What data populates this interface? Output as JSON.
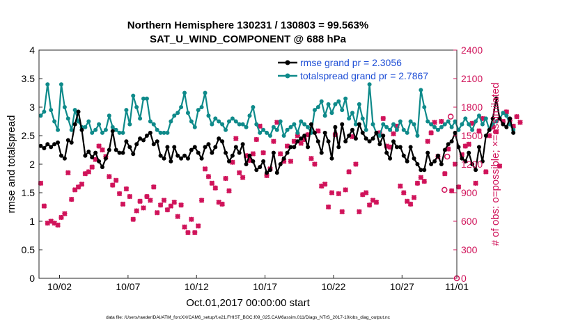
{
  "chart_data": {
    "type": "line",
    "title_line1": "Northern Hemisphere 130231 / 130803 = 99.563%",
    "title_line2": "SAT_U_WIND_COMPONENT @ 688 hPa",
    "xlabel": "Oct.01,2017 00:00:00 start",
    "ylabel_left": "rmse and totalspread",
    "ylabel_right": "# of obs: o=possible; ×=assimilated",
    "footer": "data file: /Users/raeder/DAI/ATM_forcXX/CAM6_setup/f.e21.FHIST_BGC.f09_025.CAM6assim.011/Diags_NTrS_2017-10/obs_diag_output.nc",
    "xlim": [
      0.5,
      31.0
    ],
    "ylim_left": [
      0,
      4
    ],
    "ylim_right": [
      0,
      2400
    ],
    "x_ticks": [
      {
        "value": 2,
        "label": "10/02"
      },
      {
        "value": 7,
        "label": "10/07"
      },
      {
        "value": 12,
        "label": "10/12"
      },
      {
        "value": 17,
        "label": "10/17"
      },
      {
        "value": 22,
        "label": "10/22"
      },
      {
        "value": 27,
        "label": "10/27"
      },
      {
        "value": 31,
        "label": "11/01"
      }
    ],
    "y_ticks_left": [
      {
        "value": 0,
        "label": "0"
      },
      {
        "value": 0.5,
        "label": "0.5"
      },
      {
        "value": 1,
        "label": "1"
      },
      {
        "value": 1.5,
        "label": "1.5"
      },
      {
        "value": 2,
        "label": "2"
      },
      {
        "value": 2.5,
        "label": "2.5"
      },
      {
        "value": 3,
        "label": "3"
      },
      {
        "value": 3.5,
        "label": "3.5"
      },
      {
        "value": 4,
        "label": "4"
      }
    ],
    "y_ticks_right": [
      {
        "value": 0,
        "label": "0"
      },
      {
        "value": 300,
        "label": "300"
      },
      {
        "value": 600,
        "label": "600"
      },
      {
        "value": 900,
        "label": "900"
      },
      {
        "value": 1200,
        "label": "1200"
      },
      {
        "value": 1500,
        "label": "1500"
      },
      {
        "value": 1800,
        "label": "1800"
      },
      {
        "value": 2100,
        "label": "2100"
      },
      {
        "value": 2400,
        "label": "2400"
      }
    ],
    "legend": [
      {
        "name": "rmse grand pr = 2.3056",
        "color": "#000000"
      },
      {
        "name": "totalspread grand pr = 2.7867",
        "color": "#0e8a8a"
      }
    ],
    "legend_position": "top-right",
    "colors": {
      "rmse": "#000000",
      "spread": "#0e8a8a",
      "obs": "#d0135a",
      "legend_text": "#1f4fd6"
    },
    "x_start": 0.625,
    "x_step": 0.25,
    "series": [
      {
        "name": "rmse",
        "axis": "left",
        "values": [
          2.32,
          2.28,
          2.35,
          2.3,
          2.35,
          2.38,
          2.15,
          2.1,
          2.42,
          2.38,
          2.7,
          2.92,
          2.6,
          2.15,
          2.22,
          2.12,
          2.2,
          2.05,
          1.95,
          2.1,
          2.25,
          2.58,
          2.25,
          2.2,
          2.2,
          2.4,
          2.3,
          2.18,
          2.35,
          2.45,
          2.42,
          2.5,
          2.55,
          2.35,
          2.4,
          2.15,
          2.1,
          2.3,
          2.05,
          2.3,
          2.15,
          2.1,
          2.15,
          2.1,
          2.25,
          2.3,
          2.2,
          2.1,
          2.3,
          2.35,
          2.2,
          2.3,
          2.45,
          2.4,
          2.2,
          2.05,
          2.15,
          2.3,
          2.2,
          2.35,
          2.0,
          2.15,
          2.05,
          1.9,
          1.95,
          2.05,
          1.85,
          1.9,
          2.2,
          1.85,
          2.0,
          2.1,
          2.2,
          2.3,
          2.3,
          2.4,
          2.45,
          2.5,
          2.3,
          2.7,
          2.55,
          2.4,
          2.2,
          2.55,
          2.4,
          2.1,
          2.65,
          2.3,
          2.7,
          2.4,
          2.5,
          2.6,
          2.45,
          2.7,
          2.55,
          2.45,
          2.4,
          2.45,
          2.55,
          2.35,
          2.5,
          2.2,
          2.1,
          2.4,
          2.3,
          2.3,
          2.15,
          2.05,
          2.3,
          2.1,
          2.0,
          1.9,
          1.9,
          2.2,
          2.0,
          2.05,
          2.15,
          2.0,
          2.25,
          2.35,
          2.4,
          2.55,
          2.3,
          2.1,
          2.05,
          2.2,
          2.0,
          1.9,
          2.3,
          2.05,
          2.5,
          2.6,
          2.8,
          3.15,
          2.8,
          2.7,
          2.65,
          2.8,
          2.55
        ],
        "color": "#000000"
      },
      {
        "name": "totalspread",
        "axis": "left",
        "values": [
          2.85,
          2.92,
          3.4,
          2.95,
          2.75,
          2.6,
          3.4,
          3.0,
          2.8,
          2.6,
          2.95,
          2.75,
          2.65,
          2.65,
          2.75,
          2.55,
          2.6,
          2.7,
          2.55,
          2.6,
          2.85,
          2.65,
          2.6,
          2.55,
          2.55,
          2.95,
          2.7,
          3.2,
          3.0,
          2.8,
          3.15,
          3.15,
          2.75,
          2.7,
          2.6,
          2.55,
          2.55,
          2.55,
          2.75,
          2.85,
          2.9,
          3.0,
          3.25,
          2.9,
          2.75,
          2.65,
          2.95,
          3.0,
          3.25,
          2.85,
          2.7,
          2.8,
          2.75,
          2.7,
          2.6,
          2.75,
          2.8,
          2.75,
          2.7,
          2.7,
          2.65,
          2.85,
          3.0,
          2.7,
          2.55,
          2.6,
          2.55,
          2.5,
          2.65,
          2.6,
          2.75,
          2.5,
          2.6,
          2.65,
          2.7,
          2.55,
          2.75,
          2.7,
          2.65,
          2.55,
          2.95,
          3.0,
          3.1,
          2.85,
          3.05,
          2.9,
          3.05,
          3.1,
          2.95,
          3.15,
          2.8,
          2.9,
          2.7,
          3.05,
          2.8,
          2.6,
          3.4,
          2.7,
          2.55,
          2.5,
          2.7,
          2.65,
          2.6,
          2.7,
          2.6,
          2.75,
          2.6,
          2.55,
          2.75,
          2.7,
          2.5,
          3.3,
          3.0,
          2.75,
          2.7,
          2.65,
          2.6,
          2.65,
          2.7,
          2.75,
          2.65,
          2.75,
          2.6,
          2.7,
          2.8,
          2.7,
          2.6,
          2.75,
          2.85,
          2.7,
          2.8,
          2.6,
          2.7,
          2.75,
          2.8,
          2.9,
          2.85,
          2.7,
          2.6
        ],
        "color": "#0e8a8a"
      },
      {
        "name": "assimilated obs",
        "axis": "right",
        "values": [
          1000,
          760,
          580,
          600,
          580,
          560,
          640,
          680,
          1110,
          830,
          930,
          960,
          990,
          1100,
          1120,
          1170,
          1250,
          1390,
          1350,
          1280,
          1070,
          980,
          1030,
          890,
          780,
          940,
          860,
          620,
          710,
          810,
          740,
          860,
          820,
          960,
          690,
          770,
          820,
          720,
          760,
          800,
          650,
          770,
          540,
          480,
          620,
          480,
          550,
          820,
          1150,
          1070,
          1000,
          950,
          800,
          780,
          1050,
          920,
          1220,
          1470,
          1110,
          1060,
          1290,
          1240,
          1310,
          1460,
          1600,
          1320,
          1080,
          1150,
          1440,
          1640,
          1310,
          1230,
          1390,
          1230,
          1440,
          1500,
          1420,
          1460,
          1510,
          1260,
          1200,
          1550,
          970,
          990,
          750,
          900,
          1510,
          890,
          700,
          930,
          1120,
          1490,
          1200,
          700,
          880,
          900,
          770,
          820,
          800,
          1530,
          1680,
          1390,
          1380,
          1520,
          1600,
          970,
          900,
          810,
          780,
          850,
          1000,
          1060,
          1020,
          1440,
          1530,
          1640,
          1280,
          1650,
          1100,
          1360,
          920,
          1200,
          960,
          1300,
          1390,
          1410,
          1630,
          1000,
          1550,
          1680,
          1120,
          1500,
          1590,
          1540,
          1180,
          1650,
          1750,
          1660,
          1600,
          1700,
          1640
        ],
        "color": "#d0135a"
      },
      {
        "name": "possible obs",
        "axis": "right",
        "points": [
          {
            "x": 30.1,
            "y": 930
          },
          {
            "x": 30.3,
            "y": 1280
          },
          {
            "x": 30.55,
            "y": 1700
          },
          {
            "x": 31.0,
            "y": 0
          }
        ],
        "color": "#d0135a"
      }
    ]
  }
}
